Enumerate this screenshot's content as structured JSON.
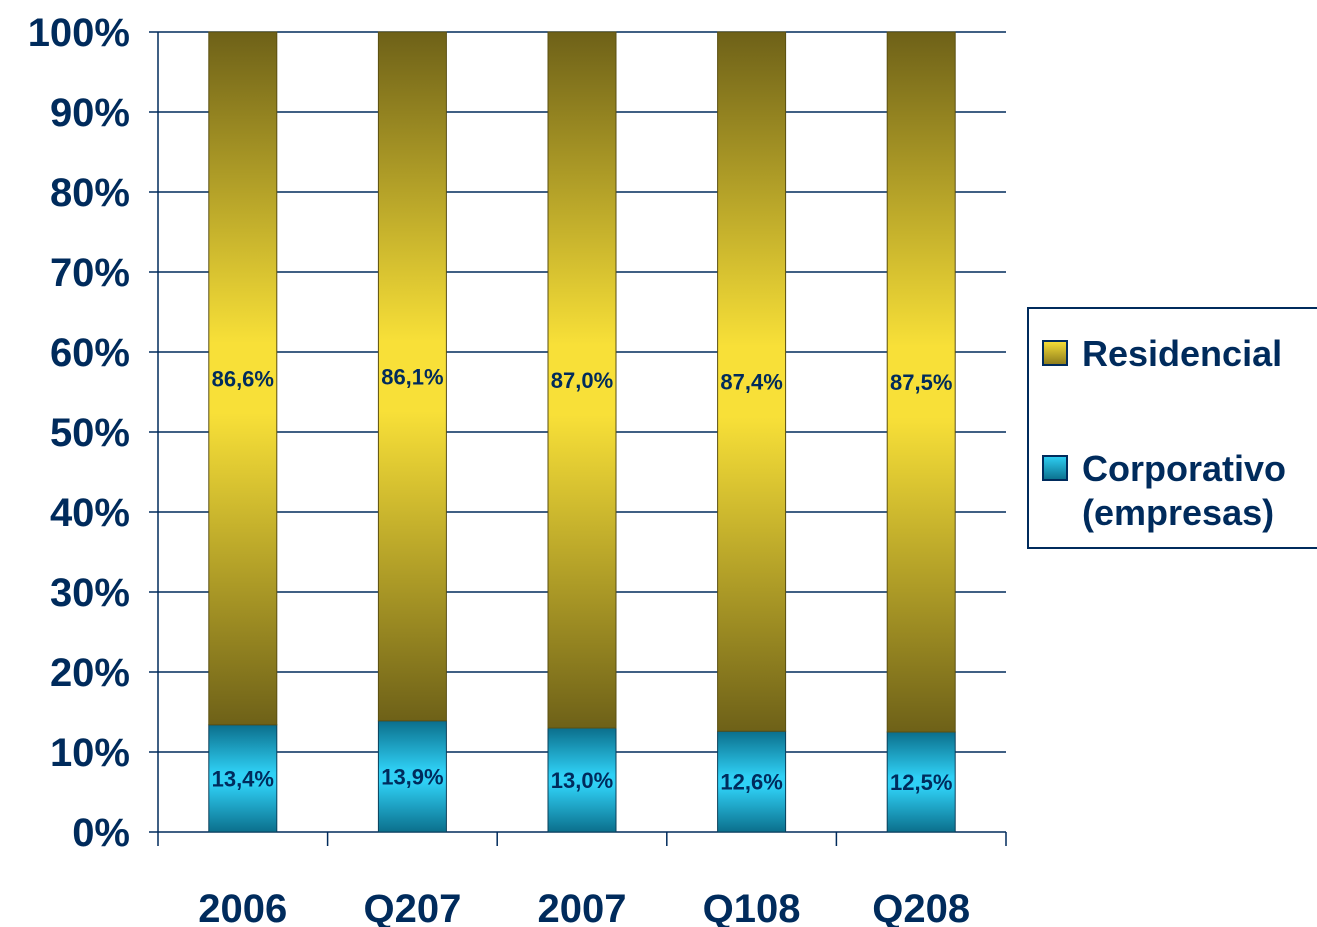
{
  "chart_data": {
    "type": "bar",
    "stacked": true,
    "percent": true,
    "categories": [
      "2006",
      "Q207",
      "2007",
      "Q108",
      "Q208"
    ],
    "series": [
      {
        "name": "Corporativo (empresas)",
        "legend_lines": [
          "Corporativo",
          "(empresas)"
        ],
        "values": [
          13.4,
          13.9,
          13.0,
          12.6,
          12.5
        ],
        "labels": [
          "13,4%",
          "13,9%",
          "13,0%",
          "12,6%",
          "12,5%"
        ],
        "color_light": "#2fd0f5",
        "color_dark": "#0b6f8c"
      },
      {
        "name": "Residencial",
        "legend_lines": [
          "Residencial"
        ],
        "values": [
          86.6,
          86.1,
          87.0,
          87.4,
          87.5
        ],
        "labels": [
          "86,6%",
          "86,1%",
          "87,0%",
          "87,4%",
          "87,5%"
        ],
        "color_light": "#f8e038",
        "color_dark": "#6e6118"
      }
    ],
    "yticks": [
      "0%",
      "10%",
      "20%",
      "30%",
      "40%",
      "50%",
      "60%",
      "70%",
      "80%",
      "90%",
      "100%"
    ],
    "ylim": [
      0,
      100
    ],
    "grid": true,
    "legend_position": "right",
    "text_color": "#002b5c"
  }
}
